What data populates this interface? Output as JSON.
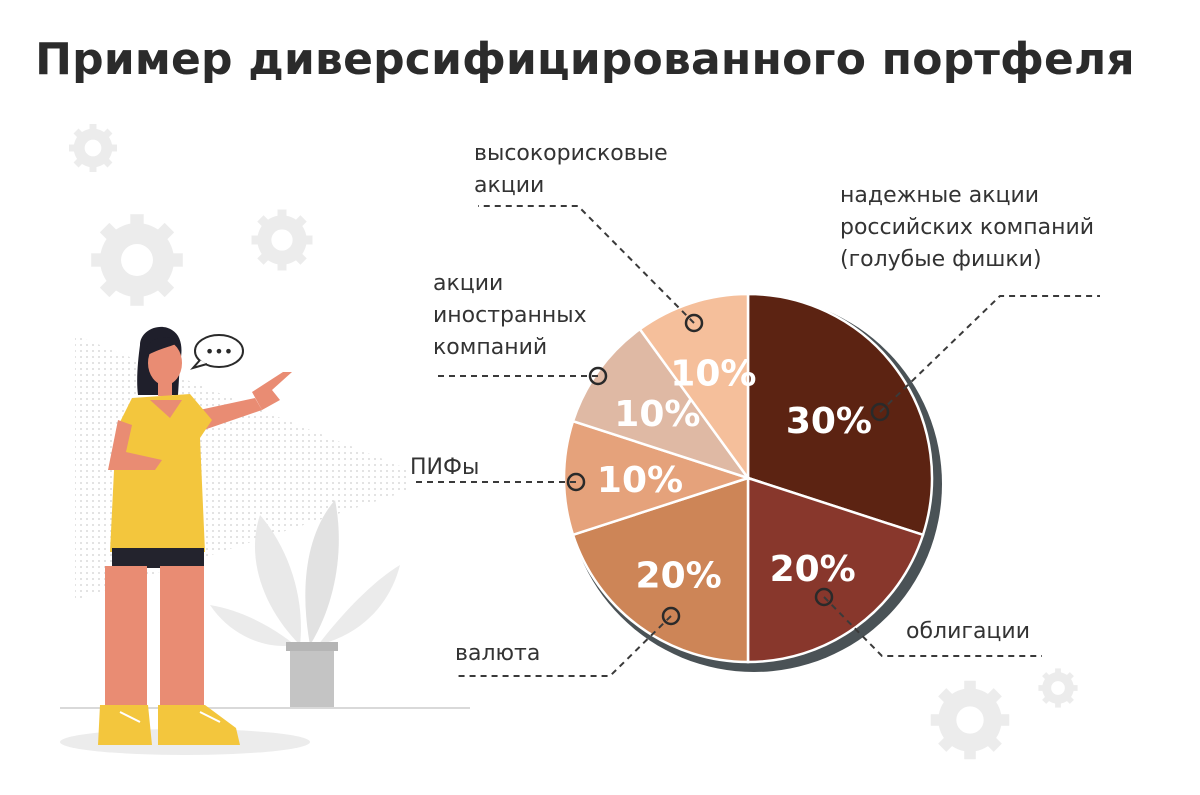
{
  "title": "Пример диверсифицированного портфеля",
  "chart_data": {
    "type": "pie",
    "slices": [
      {
        "label": [
          "надежные акции",
          "российских компаний",
          "(голубые фишки)"
        ],
        "value": 30,
        "value_label": "30%",
        "color": "#5c2312"
      },
      {
        "label": [
          "облигации"
        ],
        "value": 20,
        "value_label": "20%",
        "color": "#88372c"
      },
      {
        "label": [
          "валюта"
        ],
        "value": 20,
        "value_label": "20%",
        "color": "#cd8557"
      },
      {
        "label": [
          "ПИФы"
        ],
        "value": 10,
        "value_label": "10%",
        "color": "#e5a27b"
      },
      {
        "label": [
          "акции",
          "иностранных",
          "компаний"
        ],
        "value": 10,
        "value_label": "10%",
        "color": "#dfb9a4"
      },
      {
        "label": [
          "высокорисковые",
          "акции"
        ],
        "value": 10,
        "value_label": "10%",
        "color": "#f5bf9b"
      }
    ]
  },
  "illustration": {
    "figure": "woman-pointing",
    "speech_bubble": "•••"
  }
}
